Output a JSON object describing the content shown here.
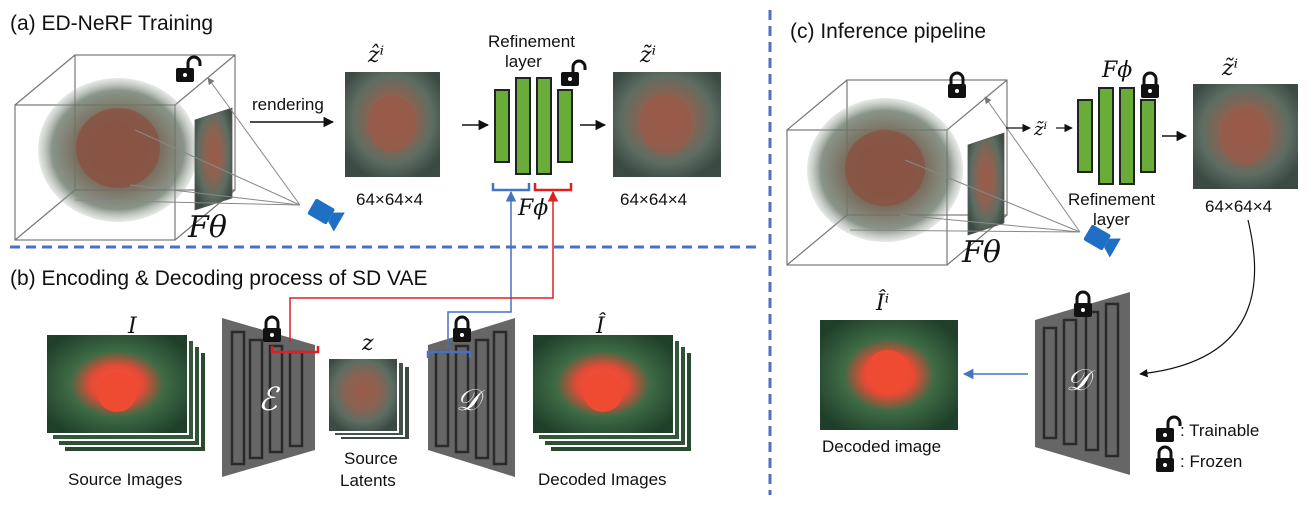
{
  "panel_a": {
    "title": "(a) ED-NeRF Training",
    "rendering": "rendering",
    "z_hat": "ẑⁱ",
    "refinement_line1": "Refinement",
    "refinement_line2": "layer",
    "z_tilde": "z̃ⁱ",
    "dim_left": "64×64×4",
    "dim_right": "64×64×4",
    "f_theta": "Fθ",
    "f_phi": "Fϕ"
  },
  "panel_b": {
    "title": "(b) Encoding & Decoding process of SD VAE",
    "I_label": "I",
    "source_images": "Source Images",
    "encoder_symbol": "ℰ",
    "z_label": "z",
    "source_latents_1": "Source",
    "source_latents_2": "Latents",
    "decoder_symbol": "𝒟",
    "I_hat": "Î",
    "decoded_images": "Decoded Images"
  },
  "panel_c": {
    "title": "(c) Inference pipeline",
    "f_phi": "Fϕ",
    "z_tilde_in": "z̃ⁱ",
    "z_tilde_out": "z̃ⁱ",
    "refinement_line1": "Refinement",
    "refinement_line2": "layer",
    "dim": "64×64×4",
    "f_theta": "Fθ",
    "I_hat": "Îⁱ",
    "decoded_image": "Decoded image",
    "decoder_symbol": "𝒟"
  },
  "legend": {
    "trainable": ": Trainable",
    "frozen": ": Frozen"
  },
  "colors": {
    "green_block": "#6aac3a",
    "blue_path": "#4472c4",
    "red_path": "#e02020",
    "divider": "#4a72c4",
    "vae_gray": "#666666",
    "camera_blue": "#1f6fc4"
  },
  "icons": [
    "camera-icon",
    "lock-open-icon",
    "lock-closed-icon"
  ]
}
